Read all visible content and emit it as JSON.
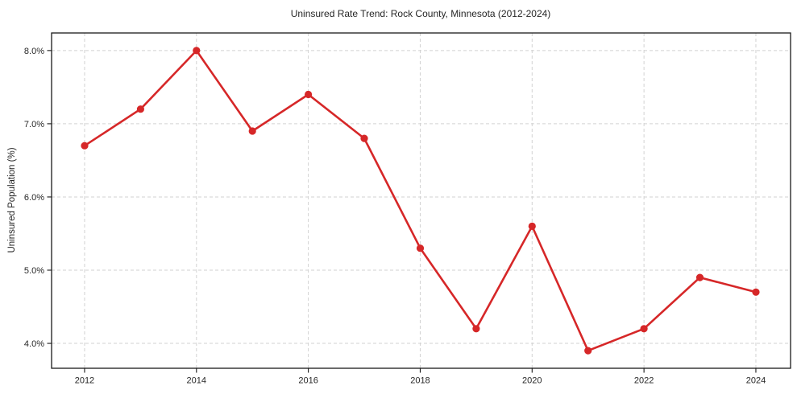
{
  "chart_data": {
    "type": "line",
    "title": "Uninsured Rate Trend: Rock County, Minnesota (2012-2024)",
    "xlabel": "",
    "ylabel": "Uninsured Population (%)",
    "x": [
      2012,
      2013,
      2014,
      2015,
      2016,
      2017,
      2018,
      2019,
      2020,
      2021,
      2022,
      2023,
      2024
    ],
    "series": [
      {
        "name": "Uninsured rate",
        "values": [
          6.7,
          7.2,
          8.0,
          6.9,
          7.4,
          6.8,
          5.3,
          4.2,
          5.6,
          3.9,
          4.2,
          4.9,
          4.7
        ]
      }
    ],
    "xlim": [
      2011.41,
      2024.62
    ],
    "ylim": [
      3.66,
      8.24
    ],
    "x_ticks": [
      2012,
      2014,
      2016,
      2018,
      2020,
      2022,
      2024
    ],
    "x_tick_labels": [
      "2012",
      "2014",
      "2016",
      "2018",
      "2020",
      "2022",
      "2024"
    ],
    "y_ticks": [
      4.0,
      5.0,
      6.0,
      7.0,
      8.0
    ],
    "y_tick_labels": [
      "4.0%",
      "5.0%",
      "6.0%",
      "7.0%",
      "8.0%"
    ],
    "grid": "both, dashed",
    "legend": "none",
    "colors": {
      "line": "#d62728",
      "marker": "#d62728",
      "grid": "#d2d2d2",
      "spine": "#1a1a1a",
      "tick": "#1a1a1a",
      "text": "#262626",
      "background": "#ffffff"
    }
  }
}
